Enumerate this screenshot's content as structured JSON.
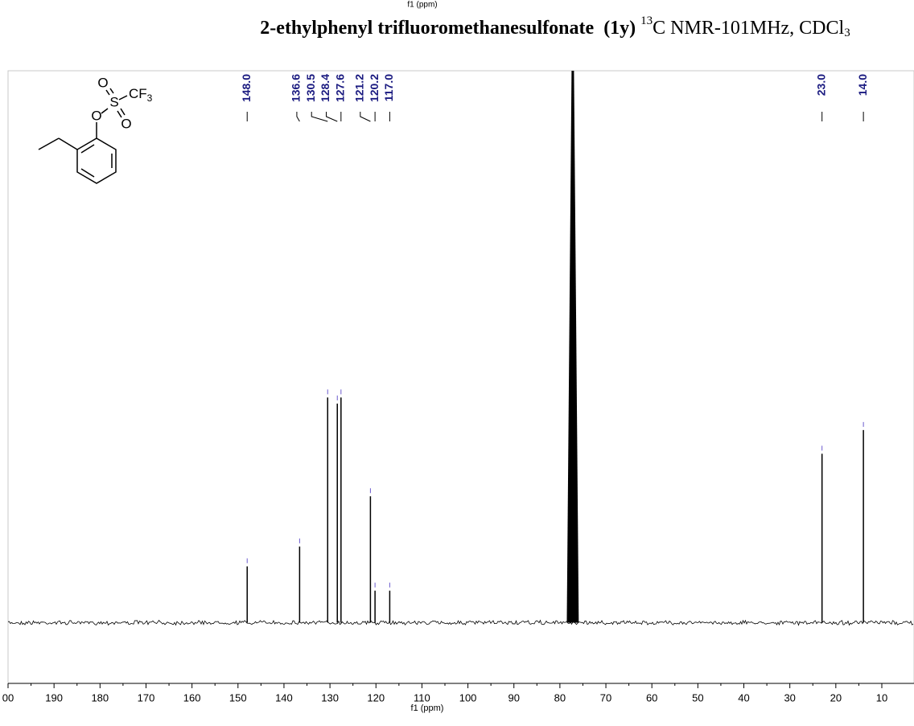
{
  "chart_data": {
    "type": "nmr",
    "top_label": "f1 (ppm)",
    "title_parts": [
      "2-ethylphenyl trifluoromethanesulfonate",
      "(1y)",
      "13",
      "C NMR-101MHz, CDCl",
      "3"
    ],
    "xlabel": "f1 (ppm)",
    "xlim": [
      200,
      3
    ],
    "ylim": [
      -11,
      100
    ],
    "xticks": [
      {
        "value": 200,
        "label": "00"
      },
      190,
      180,
      170,
      160,
      150,
      140,
      130,
      120,
      110,
      100,
      90,
      80,
      70,
      60,
      50,
      40,
      30,
      20,
      10
    ],
    "color": "#000000",
    "label_color": "#1a1a80",
    "peaks": {
      "x": [
        148.0,
        136.6,
        130.5,
        128.4,
        127.6,
        121.2,
        120.2,
        117.0,
        77.2,
        23.0,
        14.0
      ],
      "values": [
        10.2,
        13.8,
        40.8,
        39.7,
        40.8,
        22.9,
        5.8,
        5.8,
        100,
        30.6,
        34.9
      ],
      "value_labels": [
        "148.0",
        "136.6",
        "130.5",
        "128.4",
        "127.6",
        "121.2",
        "120.2",
        "117.0",
        null,
        "23.0",
        "14.0"
      ]
    },
    "structure": {
      "atoms": [
        "O",
        "S",
        "O",
        "O",
        "CF",
        "3"
      ]
    }
  }
}
